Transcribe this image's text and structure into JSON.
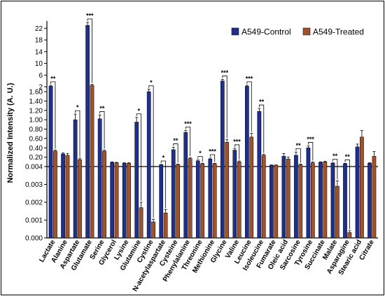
{
  "chart_data": {
    "type": "bar",
    "title": "",
    "ylabel": "Normalized Intensity (A. U.)",
    "xlabel": "",
    "legend_position": "top-right",
    "colors": {
      "A549-Control": "#1f2f8c",
      "A549-Treated": "#a0522d"
    },
    "y_axis": {
      "lower_segment": {
        "range": [
          0,
          0.004
        ],
        "ticks": [
          "0.000",
          "0.001",
          "0.002",
          "0.003",
          "0.004"
        ]
      },
      "middle_segment": {
        "range": [
          0,
          1.6
        ],
        "ticks": [
          "0.20",
          "0.40",
          "0.60",
          "0.80",
          "1.00",
          "1.20",
          "1.40",
          "1.60"
        ]
      },
      "upper_segment": {
        "range": [
          2,
          24
        ],
        "ticks": [
          "2",
          "6",
          "10",
          "14",
          "18",
          "22"
        ]
      }
    },
    "categories": [
      "Lactate",
      "Alanine",
      "Aspartate",
      "Glutamate",
      "Serine",
      "Glycerol",
      "Lysine",
      "Glutamine",
      "Cystine",
      "N-acetylaspartate",
      "Cysteine",
      "Phenylalanine",
      "Threonine",
      "Methionine",
      "Glycine",
      "Valine",
      "Leucine",
      "Isoleucine",
      "Fumarate",
      "Oleic acid",
      "Sarcosine",
      "Tyrosine",
      "Succinate",
      "Malate",
      "Asparagine",
      "Stearic acid",
      "Citrate"
    ],
    "series": [
      {
        "name": "A549-Control",
        "values": [
          2.2,
          0.27,
          1.0,
          23,
          1.02,
          0.09,
          0.07,
          0.95,
          1.6,
          0.04,
          0.36,
          0.73,
          0.12,
          0.16,
          4.0,
          0.35,
          2.2,
          1.18,
          0.03,
          0.22,
          0.24,
          0.4,
          0.09,
          0.07,
          0.06,
          0.42,
          0.07
        ],
        "errors": [
          0.3,
          0.02,
          0.12,
          1.0,
          0.08,
          0.01,
          0.01,
          0.1,
          0.2,
          0.005,
          0.05,
          0.04,
          0.02,
          0.02,
          0.5,
          0.04,
          0.3,
          0.06,
          0.004,
          0.06,
          0.07,
          0.04,
          0.01,
          0.01,
          0.01,
          0.06,
          0.01
        ]
      },
      {
        "name": "A549-Treated",
        "values": [
          0.33,
          0.24,
          0.15,
          2.5,
          0.33,
          0.08,
          0.07,
          0.0017,
          0.0009,
          0.0014,
          0.04,
          0.17,
          0.06,
          0.06,
          0.52,
          0.1,
          0.63,
          0.24,
          0.03,
          0.16,
          0.04,
          0.08,
          0.1,
          0.0029,
          0.0003,
          0.63,
          0.22
        ],
        "errors": [
          0.02,
          0.04,
          0.03,
          0.3,
          0.02,
          0.01,
          0.01,
          0.0003,
          0.00015,
          0.0002,
          0.01,
          0.02,
          0.01,
          0.01,
          0.06,
          0.02,
          0.08,
          0.02,
          0.004,
          0.04,
          0.01,
          0.02,
          0.01,
          0.0003,
          0.0001,
          0.14,
          0.1
        ]
      }
    ],
    "significance": [
      "**",
      "",
      "*",
      "***",
      "**",
      "",
      "",
      "*",
      "*",
      "*",
      "**",
      "***",
      "*",
      "***",
      "***",
      "***",
      "***",
      "**",
      "",
      "",
      "**",
      "***",
      "",
      "**",
      "**",
      "",
      ""
    ]
  }
}
